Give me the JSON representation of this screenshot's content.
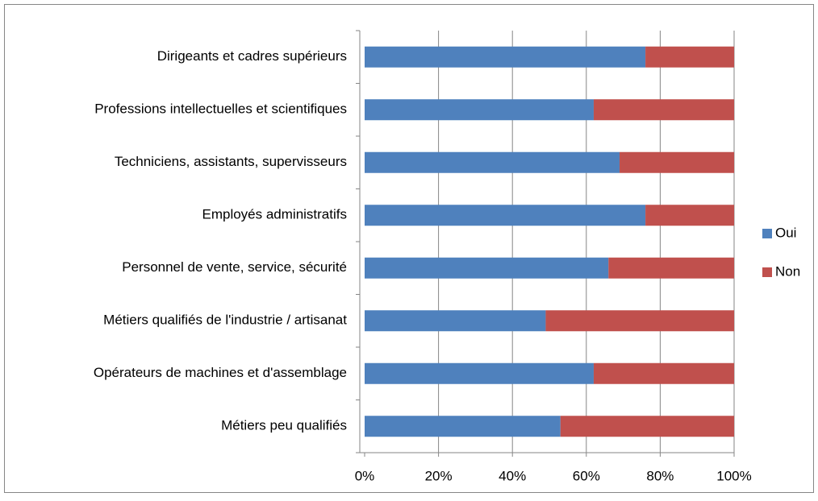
{
  "chart_data": {
    "type": "stacked-bar-horizontal",
    "categories": [
      "Dirigeants et cadres supérieurs",
      "Professions intellectuelles et scientifiques",
      "Techniciens, assistants, supervisseurs",
      "Employés administratifs",
      "Personnel de vente, service, sécurité",
      "Métiers qualifiés de l'industrie / artisanat",
      "Opérateurs de machines et d'assemblage",
      "Métiers peu qualifiés"
    ],
    "series": [
      {
        "name": "Oui",
        "color": "#4f81bd",
        "values": [
          76,
          62,
          69,
          76,
          66,
          49,
          62,
          53
        ]
      },
      {
        "name": "Non",
        "color": "#c0504d",
        "values": [
          24,
          38,
          31,
          24,
          34,
          51,
          38,
          47
        ]
      }
    ],
    "xlim": [
      0,
      100
    ],
    "xticks": [
      {
        "value": 0,
        "label": "0%"
      },
      {
        "value": 20,
        "label": "20%"
      },
      {
        "value": 40,
        "label": "40%"
      },
      {
        "value": 60,
        "label": "60%"
      },
      {
        "value": 80,
        "label": "80%"
      },
      {
        "value": 100,
        "label": "100%"
      }
    ],
    "grid": true,
    "legend": "right"
  }
}
